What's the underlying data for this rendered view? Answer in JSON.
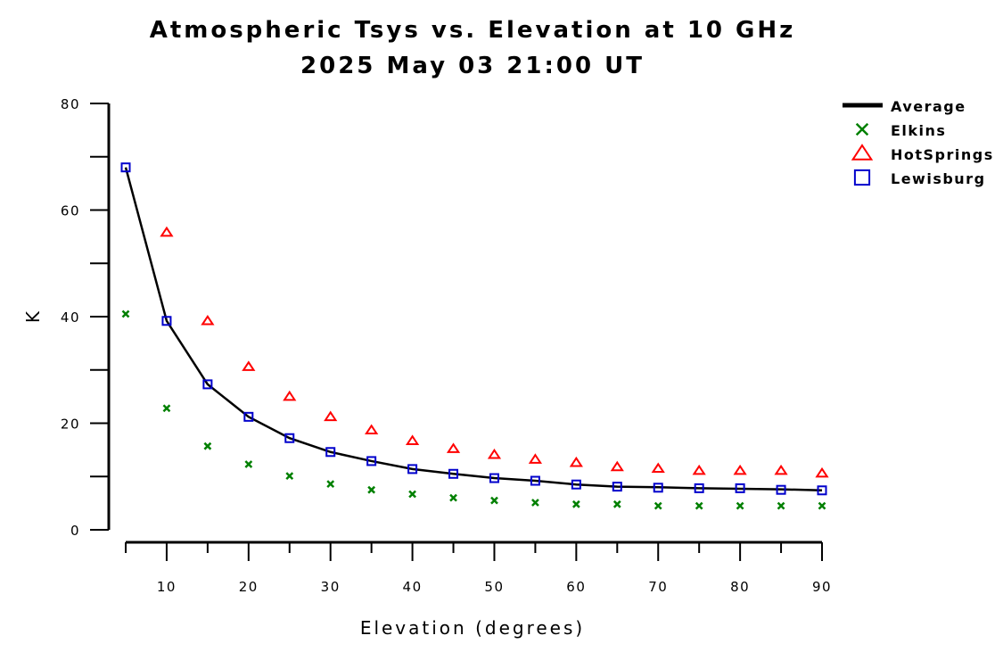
{
  "chart_data": {
    "type": "line",
    "title": "Atmospheric Tsys vs. Elevation at 10 GHz",
    "subtitle": "2025 May 03 21:00 UT",
    "xlabel": "Elevation (degrees)",
    "ylabel": "K",
    "xlim": [
      5,
      90
    ],
    "ylim": [
      0,
      80
    ],
    "x_ticks": [
      10,
      20,
      30,
      40,
      50,
      60,
      70,
      80,
      90
    ],
    "y_ticks": [
      0,
      20,
      40,
      60,
      80
    ],
    "grid": false,
    "legend_position": "top-right",
    "x": [
      5,
      10,
      15,
      20,
      25,
      30,
      35,
      40,
      45,
      50,
      55,
      60,
      65,
      70,
      75,
      80,
      85,
      90
    ],
    "series": [
      {
        "name": "Average",
        "style": "line",
        "color": "#000000",
        "values": [
          68,
          39.2,
          27.3,
          21.2,
          17.2,
          14.6,
          12.9,
          11.4,
          10.5,
          9.7,
          9.2,
          8.5,
          8.1,
          8.0,
          7.8,
          7.7,
          7.6,
          7.4
        ]
      },
      {
        "name": "Elkins",
        "style": "x",
        "color": "#008000",
        "values": [
          40.5,
          22.8,
          15.7,
          12.3,
          10.1,
          8.6,
          7.5,
          6.7,
          6.0,
          5.5,
          5.1,
          4.8,
          4.8,
          4.5,
          4.5,
          4.5,
          4.5,
          4.5
        ]
      },
      {
        "name": "HotSprings",
        "style": "triangle",
        "color": "#ff0000",
        "values": [
          null,
          55.8,
          39.2,
          30.6,
          25.0,
          21.2,
          18.7,
          16.7,
          15.2,
          14.1,
          13.2,
          12.6,
          11.8,
          11.5,
          11.1,
          11.1,
          11.1,
          10.6
        ]
      },
      {
        "name": "Lewisburg",
        "style": "square",
        "color": "#0000cc",
        "values": [
          68.0,
          39.2,
          27.3,
          21.2,
          17.2,
          14.6,
          12.9,
          11.4,
          10.5,
          9.7,
          9.2,
          8.5,
          8.1,
          7.9,
          7.8,
          7.8,
          7.5,
          7.4
        ]
      }
    ]
  }
}
